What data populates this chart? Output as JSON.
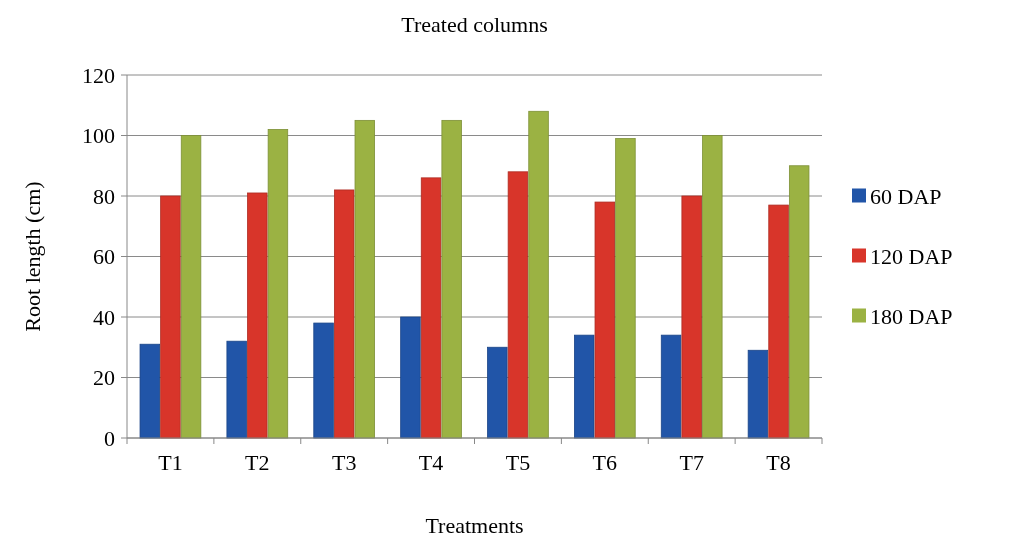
{
  "chart_data": {
    "type": "bar",
    "title": "Treated columns",
    "xlabel": "Treatments",
    "ylabel": "Root length (cm)",
    "categories": [
      "T1",
      "T2",
      "T3",
      "T4",
      "T5",
      "T6",
      "T7",
      "T8"
    ],
    "series": [
      {
        "name": "60 DAP",
        "color": "#2155a8",
        "values": [
          31,
          32,
          38,
          40,
          30,
          34,
          34,
          29
        ]
      },
      {
        "name": "120 DAP",
        "color": "#d8352a",
        "values": [
          80,
          81,
          82,
          86,
          88,
          78,
          80,
          77
        ]
      },
      {
        "name": "180 DAP",
        "color": "#9bb243",
        "values": [
          100,
          102,
          105,
          105,
          108,
          99,
          100,
          90
        ]
      }
    ],
    "ylim": [
      0,
      120
    ],
    "yticks": [
      0,
      20,
      40,
      60,
      80,
      100,
      120
    ],
    "grid": "y",
    "legend": "right"
  }
}
